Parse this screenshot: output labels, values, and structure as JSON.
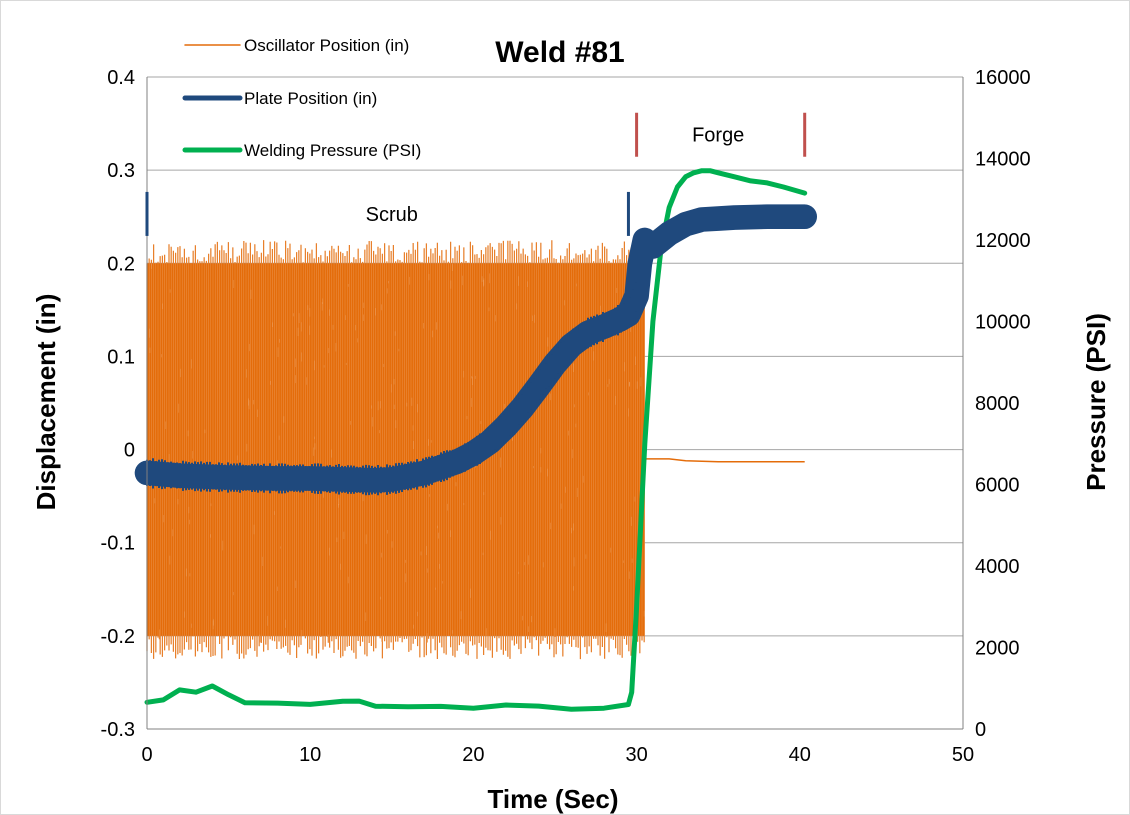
{
  "chart_data": {
    "type": "line",
    "title": "Weld #81",
    "xlabel": "Time (Sec)",
    "ylabel": "Displacement (in)",
    "y2label": "Pressure (PSI)",
    "xlim": [
      0,
      50
    ],
    "ylim": [
      -0.3,
      0.4
    ],
    "y2lim": [
      0,
      16000
    ],
    "x_ticks": [
      "0",
      "10",
      "20",
      "30",
      "40",
      "50"
    ],
    "y_ticks": [
      "-0.3",
      "-0.2",
      "-0.1",
      "0",
      "0.1",
      "0.2",
      "0.3",
      "0.4"
    ],
    "y2_ticks": [
      "0",
      "2000",
      "4000",
      "6000",
      "8000",
      "10000",
      "12000",
      "14000",
      "16000"
    ],
    "grid": "horizontal",
    "legend_position": "top-left",
    "series": [
      {
        "name": "Oscillator Position (in)",
        "axis": "left",
        "color": "#E46C0A",
        "oscillation": {
          "x_start": 0,
          "x_end": 30.5,
          "upper": 0.2,
          "lower": -0.2,
          "peak_max": 0.225,
          "peak_min": -0.225
        },
        "x": [
          30.6,
          32,
          33,
          35,
          40.3
        ],
        "y": [
          -0.01,
          -0.01,
          -0.012,
          -0.013,
          -0.013
        ]
      },
      {
        "name": "Plate Position (in)",
        "axis": "left",
        "color": "#1F497D",
        "band_half_width": 0.01,
        "x": [
          0,
          2,
          5,
          8,
          10,
          12,
          14,
          15,
          17,
          19,
          20,
          21,
          22,
          23,
          24,
          25,
          26,
          27,
          28,
          29,
          29.5,
          30,
          30.2,
          30.5,
          31,
          32,
          33,
          34,
          35,
          36,
          38,
          40.3
        ],
        "y": [
          -0.025,
          -0.028,
          -0.03,
          -0.031,
          -0.031,
          -0.032,
          -0.033,
          -0.032,
          -0.025,
          -0.013,
          -0.004,
          0.008,
          0.025,
          0.045,
          0.068,
          0.092,
          0.112,
          0.125,
          0.132,
          0.14,
          0.145,
          0.165,
          0.2,
          0.225,
          0.218,
          0.232,
          0.242,
          0.247,
          0.248,
          0.249,
          0.25,
          0.25
        ]
      },
      {
        "name": "Welding Pressure (PSI)",
        "axis": "right",
        "color": "#00B050",
        "x": [
          0,
          1,
          2,
          3,
          4,
          5,
          6,
          8,
          10,
          12,
          13,
          14,
          16,
          18,
          20,
          22,
          24,
          26,
          28,
          29.5,
          29.7,
          30,
          30.5,
          31,
          31.5,
          32,
          32.5,
          33,
          33.5,
          34,
          34.5,
          35,
          36,
          37,
          38,
          39,
          40.3
        ],
        "y": [
          600,
          750,
          900,
          950,
          1000,
          800,
          700,
          650,
          600,
          650,
          700,
          600,
          550,
          500,
          550,
          550,
          550,
          500,
          550,
          600,
          900,
          3000,
          7000,
          10000,
          11800,
          12800,
          13300,
          13550,
          13650,
          13700,
          13700,
          13650,
          13550,
          13450,
          13400,
          13300,
          13150
        ]
      }
    ],
    "annotations": [
      {
        "label": "Scrub",
        "x": 15,
        "y": 0.253,
        "markers": [
          0,
          29.5
        ],
        "marker_color": "#1F497D"
      },
      {
        "label": "Forge",
        "x": 35,
        "y": 0.338,
        "markers": [
          30,
          40.3
        ],
        "marker_color": "#C0504D"
      }
    ]
  }
}
